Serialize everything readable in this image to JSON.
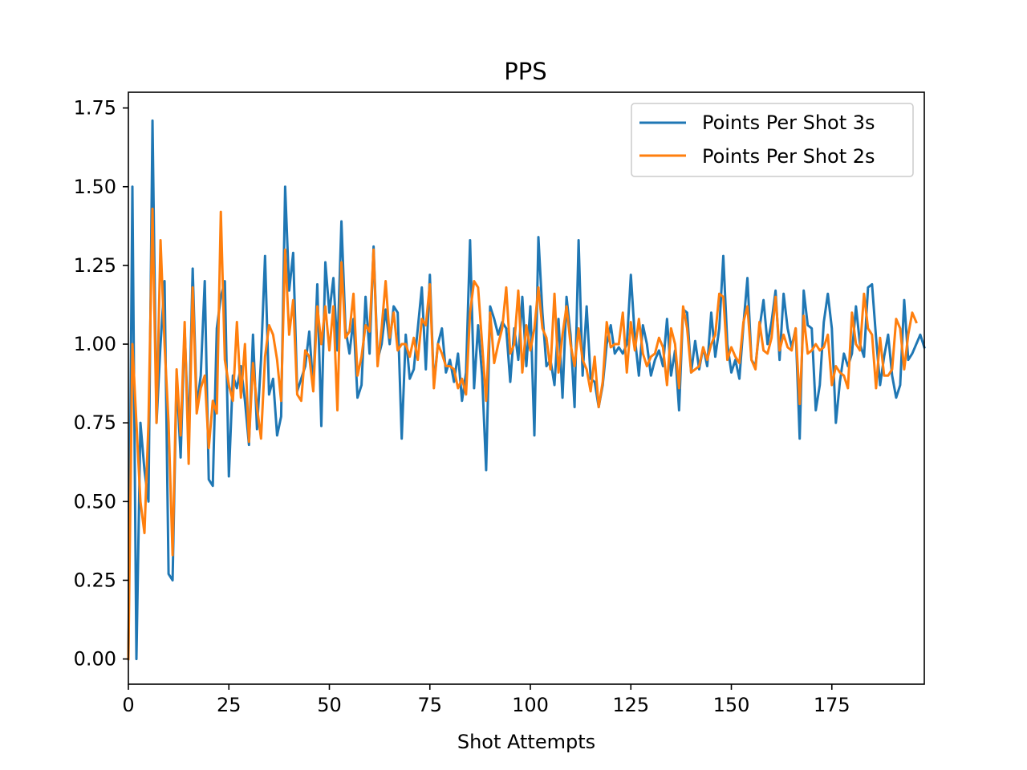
{
  "chart_data": {
    "type": "line",
    "title": "PPS",
    "xlabel": "Shot Attempts",
    "ylabel": "",
    "xlim": [
      0,
      198
    ],
    "ylim": [
      -0.08,
      1.8
    ],
    "xticks": [
      0,
      25,
      50,
      75,
      100,
      125,
      150,
      175
    ],
    "xtick_labels": [
      "0",
      "25",
      "50",
      "75",
      "100",
      "125",
      "150",
      "175"
    ],
    "yticks": [
      0.0,
      0.25,
      0.5,
      0.75,
      1.0,
      1.25,
      1.5,
      1.75
    ],
    "ytick_labels": [
      "0.00",
      "0.25",
      "0.50",
      "0.75",
      "1.00",
      "1.25",
      "1.50",
      "1.75"
    ],
    "legend_position": "top-right",
    "grid": false,
    "series": [
      {
        "name": "Points Per Shot 3s",
        "color": "#1f77b4",
        "values": [
          0.0,
          1.5,
          0.0,
          0.75,
          0.6,
          0.5,
          1.71,
          0.75,
          1.0,
          1.2,
          0.27,
          0.25,
          0.9,
          0.64,
          1.05,
          0.7,
          1.24,
          0.8,
          0.9,
          1.2,
          0.57,
          0.55,
          1.05,
          1.15,
          1.2,
          0.58,
          0.9,
          0.86,
          0.93,
          0.82,
          0.68,
          1.03,
          0.73,
          0.95,
          1.28,
          0.84,
          0.89,
          0.71,
          0.77,
          1.5,
          1.17,
          1.29,
          0.85,
          0.89,
          0.93,
          1.04,
          0.86,
          1.19,
          0.74,
          1.26,
          1.1,
          1.21,
          0.98,
          1.39,
          1.05,
          0.97,
          1.08,
          0.83,
          0.87,
          1.15,
          0.97,
          1.31,
          0.95,
          1.0,
          1.11,
          1.0,
          1.12,
          1.1,
          0.7,
          1.03,
          0.89,
          0.92,
          1.05,
          1.18,
          0.92,
          1.22,
          0.87,
          1.0,
          1.05,
          0.91,
          0.95,
          0.88,
          0.97,
          0.82,
          0.91,
          1.33,
          0.86,
          1.06,
          0.9,
          0.6,
          1.12,
          1.08,
          1.03,
          1.07,
          1.05,
          0.88,
          1.05,
          0.95,
          1.15,
          0.93,
          1.12,
          0.71,
          1.34,
          1.1,
          0.93,
          0.95,
          0.87,
          1.08,
          0.83,
          1.15,
          1.03,
          0.8,
          1.33,
          0.9,
          1.12,
          0.89,
          0.88,
          0.8,
          0.87,
          1.0,
          1.06,
          0.97,
          0.99,
          0.97,
          1.0,
          1.22,
          1.02,
          0.9,
          1.06,
          1.0,
          0.9,
          0.95,
          0.98,
          0.93,
          1.08,
          0.9,
          0.98,
          0.79,
          1.11,
          1.1,
          0.91,
          1.01,
          0.92,
          0.99,
          0.93,
          1.1,
          0.96,
          1.05,
          1.28,
          1.0,
          0.91,
          0.95,
          0.89,
          1.06,
          1.21,
          0.95,
          0.93,
          1.05,
          1.14,
          1.0,
          1.07,
          1.17,
          0.95,
          1.16,
          1.05,
          0.99,
          1.05,
          0.7,
          1.17,
          1.06,
          1.05,
          0.79,
          0.87,
          1.07,
          1.16,
          1.05,
          0.75,
          0.88,
          0.97,
          0.93,
          0.97,
          1.12,
          1.0,
          0.96,
          1.18,
          1.19,
          1.02,
          0.87,
          0.96,
          1.03,
          0.9,
          0.83,
          0.87,
          1.14,
          0.95,
          0.97,
          1.0,
          1.03,
          0.99
        ]
      },
      {
        "name": "Points Per Shot 2s",
        "color": "#ff7f0e",
        "values": [
          0.0,
          1.0,
          0.75,
          0.5,
          0.4,
          0.75,
          1.43,
          0.75,
          1.33,
          1.0,
          0.75,
          0.33,
          0.92,
          0.71,
          1.07,
          0.62,
          1.18,
          0.78,
          0.86,
          0.9,
          0.67,
          0.82,
          0.78,
          1.42,
          0.95,
          0.87,
          0.82,
          1.07,
          0.83,
          1.0,
          0.69,
          0.94,
          0.8,
          0.7,
          0.96,
          1.06,
          1.03,
          0.95,
          0.82,
          1.3,
          1.03,
          1.14,
          0.84,
          0.82,
          0.98,
          0.96,
          0.85,
          1.12,
          1.0,
          1.12,
          0.98,
          1.12,
          0.79,
          1.26,
          1.02,
          1.04,
          1.16,
          0.9,
          0.96,
          1.06,
          1.04,
          1.3,
          0.93,
          1.05,
          1.2,
          1.02,
          1.1,
          0.98,
          1.0,
          1.0,
          0.96,
          1.02,
          0.95,
          1.08,
          1.06,
          1.19,
          0.86,
          1.0,
          0.97,
          0.93,
          0.93,
          0.92,
          0.86,
          0.89,
          0.84,
          1.1,
          1.2,
          1.18,
          1.0,
          0.82,
          1.1,
          0.94,
          1.0,
          1.05,
          1.18,
          0.97,
          1.0,
          1.17,
          0.91,
          1.06,
          0.98,
          1.05,
          1.18,
          1.05,
          1.02,
          0.92,
          1.16,
          0.91,
          1.03,
          1.12,
          1.0,
          0.93,
          1.05,
          0.95,
          0.92,
          0.85,
          0.96,
          0.8,
          0.88,
          1.07,
          0.99,
          1.0,
          1.0,
          1.1,
          0.91,
          1.07,
          0.98,
          1.08,
          0.97,
          0.93,
          0.96,
          0.97,
          1.02,
          0.99,
          0.87,
          1.05,
          1.0,
          0.86,
          1.12,
          1.05,
          0.91,
          0.92,
          0.93,
          0.99,
          0.95,
          1.0,
          1.03,
          1.16,
          1.15,
          0.95,
          0.99,
          0.96,
          0.94,
          1.07,
          1.12,
          0.95,
          0.92,
          1.07,
          0.98,
          0.97,
          1.02,
          1.15,
          0.98,
          1.03,
          0.99,
          0.98,
          1.05,
          0.81,
          1.09,
          0.97,
          0.98,
          1.0,
          0.98,
          0.99,
          1.03,
          0.87,
          0.93,
          0.91,
          0.9,
          0.86,
          1.1,
          1.0,
          0.98,
          1.16,
          1.05,
          1.03,
          0.86,
          1.02,
          0.9,
          0.9,
          0.92,
          1.08,
          1.05,
          0.92,
          1.03,
          1.1,
          1.07
        ]
      }
    ]
  }
}
